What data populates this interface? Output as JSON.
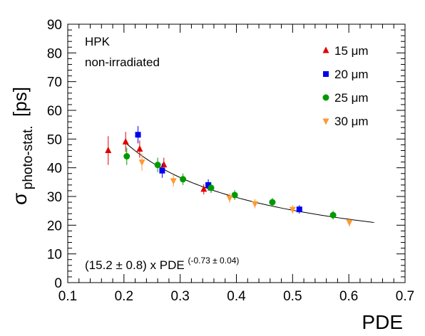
{
  "chart_data": {
    "type": "scatter",
    "xlabel": "PDE",
    "ylabel_main": "σ",
    "ylabel_sub": "photo-stat.",
    "ylabel_unit": "[ps]",
    "xlim": [
      0.1,
      0.7
    ],
    "ylim": [
      0,
      90
    ],
    "x_ticks": [
      "0.1",
      "0.2",
      "0.3",
      "0.4",
      "0.5",
      "0.6",
      "0.7"
    ],
    "y_ticks": [
      "0",
      "10",
      "20",
      "30",
      "40",
      "50",
      "60",
      "70",
      "80",
      "90"
    ],
    "grid": false,
    "legend_position": "top-right",
    "annotations": {
      "line1": "HPK",
      "line2": "non-irradiated",
      "fit_label": "(15.2 ± 0.8) x PDE",
      "fit_exponent": "(-0.73 ± 0.04)"
    },
    "series": [
      {
        "name": "15 μm",
        "marker": "triangle-up",
        "color": "#e00000",
        "points": [
          {
            "x": 0.172,
            "y": 46.0,
            "err": 5.0
          },
          {
            "x": 0.203,
            "y": 49.0,
            "err": 3.5
          },
          {
            "x": 0.228,
            "y": 46.5,
            "err": 3.0
          },
          {
            "x": 0.271,
            "y": 41.0,
            "err": 2.5
          },
          {
            "x": 0.342,
            "y": 32.5,
            "err": 1.8
          }
        ]
      },
      {
        "name": "20 μm",
        "marker": "square",
        "color": "#0000ee",
        "points": [
          {
            "x": 0.225,
            "y": 51.5,
            "err": 3.0
          },
          {
            "x": 0.268,
            "y": 39.0,
            "err": 2.5
          },
          {
            "x": 0.35,
            "y": 34.0,
            "err": 2.0
          },
          {
            "x": 0.512,
            "y": 25.5,
            "err": 1.5
          }
        ]
      },
      {
        "name": "25 μm",
        "marker": "circle",
        "color": "#009900",
        "points": [
          {
            "x": 0.205,
            "y": 44.0,
            "err": 3.0
          },
          {
            "x": 0.26,
            "y": 41.0,
            "err": 2.5
          },
          {
            "x": 0.305,
            "y": 36.0,
            "err": 2.0
          },
          {
            "x": 0.355,
            "y": 33.0,
            "err": 1.8
          },
          {
            "x": 0.397,
            "y": 30.5,
            "err": 1.7
          },
          {
            "x": 0.464,
            "y": 28.0,
            "err": 1.5
          },
          {
            "x": 0.572,
            "y": 23.5,
            "err": 1.5
          }
        ]
      },
      {
        "name": "30 μm",
        "marker": "triangle-down",
        "color": "#ff9933",
        "points": [
          {
            "x": 0.232,
            "y": 42.0,
            "err": 3.0
          },
          {
            "x": 0.288,
            "y": 35.5,
            "err": 2.0
          },
          {
            "x": 0.388,
            "y": 29.5,
            "err": 1.7
          },
          {
            "x": 0.433,
            "y": 27.5,
            "err": 1.6
          },
          {
            "x": 0.5,
            "y": 25.5,
            "err": 1.5
          },
          {
            "x": 0.601,
            "y": 21.0,
            "err": 1.5
          }
        ]
      }
    ],
    "fit": {
      "coefficient": 15.2,
      "exponent": -0.73,
      "x_range": [
        0.2,
        0.645
      ],
      "color": "#000000"
    }
  }
}
